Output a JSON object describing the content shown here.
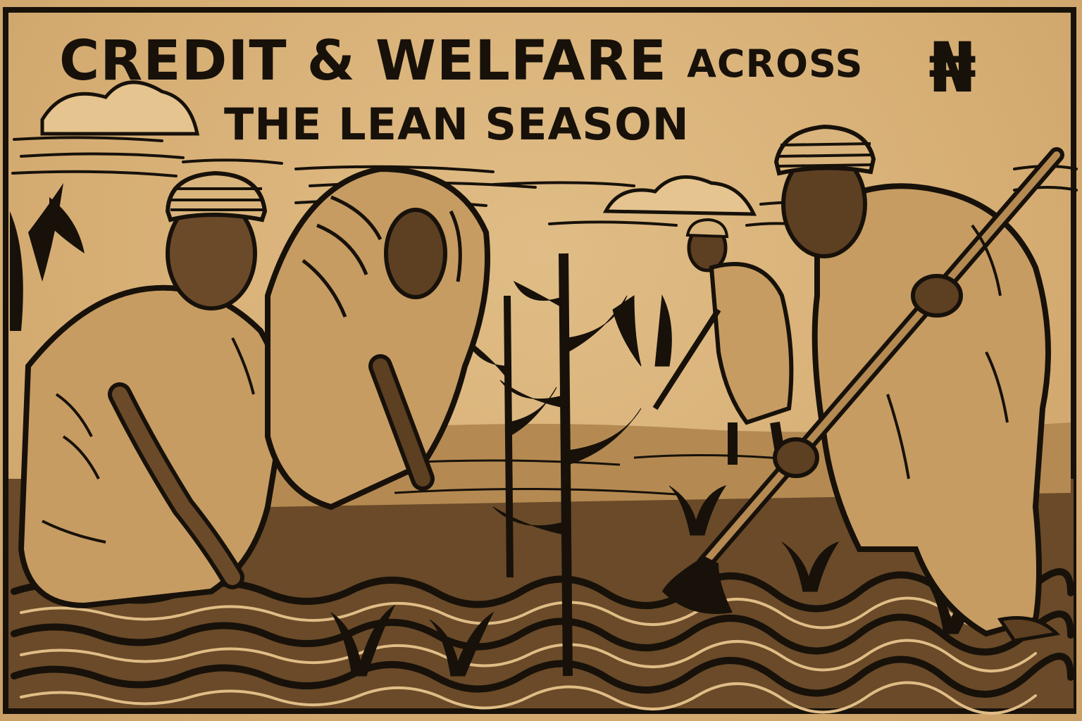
{
  "poster": {
    "title_part_1": "CREDIT & WELFARE ",
    "title_part_2": "ACROSS",
    "title_line_2": "THE LEAN SEASON",
    "currency_symbol": "₦",
    "palette": {
      "paper": "#d8b37a",
      "ink": "#17110a"
    }
  }
}
